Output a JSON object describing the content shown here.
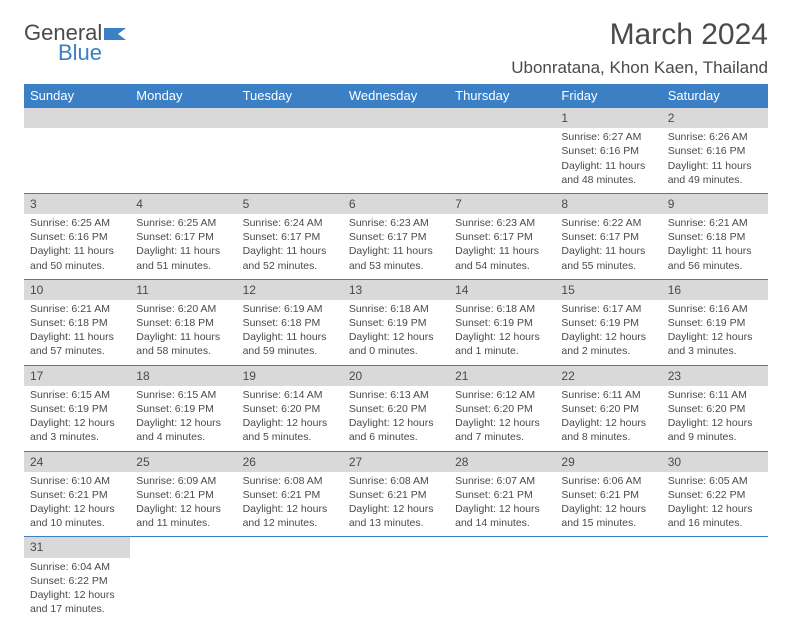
{
  "brand": {
    "part1": "General",
    "part2": "Blue"
  },
  "title": "March 2024",
  "location": "Ubonratana, Khon Kaen, Thailand",
  "colors": {
    "header_bg": "#3b7fc4",
    "header_text": "#ffffff",
    "daynum_bg": "#d9d9d9",
    "border": "#3b7fc4",
    "text": "#4a4a4a"
  },
  "fonts": {
    "title_size": 30,
    "location_size": 17,
    "weekday_size": 13,
    "daynum_size": 12,
    "detail_size": 10.5
  },
  "weekdays": [
    "Sunday",
    "Monday",
    "Tuesday",
    "Wednesday",
    "Thursday",
    "Friday",
    "Saturday"
  ],
  "weeks": [
    [
      null,
      null,
      null,
      null,
      null,
      {
        "n": "1",
        "sr": "Sunrise: 6:27 AM",
        "ss": "Sunset: 6:16 PM",
        "dl1": "Daylight: 11 hours",
        "dl2": "and 48 minutes."
      },
      {
        "n": "2",
        "sr": "Sunrise: 6:26 AM",
        "ss": "Sunset: 6:16 PM",
        "dl1": "Daylight: 11 hours",
        "dl2": "and 49 minutes."
      }
    ],
    [
      {
        "n": "3",
        "sr": "Sunrise: 6:25 AM",
        "ss": "Sunset: 6:16 PM",
        "dl1": "Daylight: 11 hours",
        "dl2": "and 50 minutes."
      },
      {
        "n": "4",
        "sr": "Sunrise: 6:25 AM",
        "ss": "Sunset: 6:17 PM",
        "dl1": "Daylight: 11 hours",
        "dl2": "and 51 minutes."
      },
      {
        "n": "5",
        "sr": "Sunrise: 6:24 AM",
        "ss": "Sunset: 6:17 PM",
        "dl1": "Daylight: 11 hours",
        "dl2": "and 52 minutes."
      },
      {
        "n": "6",
        "sr": "Sunrise: 6:23 AM",
        "ss": "Sunset: 6:17 PM",
        "dl1": "Daylight: 11 hours",
        "dl2": "and 53 minutes."
      },
      {
        "n": "7",
        "sr": "Sunrise: 6:23 AM",
        "ss": "Sunset: 6:17 PM",
        "dl1": "Daylight: 11 hours",
        "dl2": "and 54 minutes."
      },
      {
        "n": "8",
        "sr": "Sunrise: 6:22 AM",
        "ss": "Sunset: 6:17 PM",
        "dl1": "Daylight: 11 hours",
        "dl2": "and 55 minutes."
      },
      {
        "n": "9",
        "sr": "Sunrise: 6:21 AM",
        "ss": "Sunset: 6:18 PM",
        "dl1": "Daylight: 11 hours",
        "dl2": "and 56 minutes."
      }
    ],
    [
      {
        "n": "10",
        "sr": "Sunrise: 6:21 AM",
        "ss": "Sunset: 6:18 PM",
        "dl1": "Daylight: 11 hours",
        "dl2": "and 57 minutes."
      },
      {
        "n": "11",
        "sr": "Sunrise: 6:20 AM",
        "ss": "Sunset: 6:18 PM",
        "dl1": "Daylight: 11 hours",
        "dl2": "and 58 minutes."
      },
      {
        "n": "12",
        "sr": "Sunrise: 6:19 AM",
        "ss": "Sunset: 6:18 PM",
        "dl1": "Daylight: 11 hours",
        "dl2": "and 59 minutes."
      },
      {
        "n": "13",
        "sr": "Sunrise: 6:18 AM",
        "ss": "Sunset: 6:19 PM",
        "dl1": "Daylight: 12 hours",
        "dl2": "and 0 minutes."
      },
      {
        "n": "14",
        "sr": "Sunrise: 6:18 AM",
        "ss": "Sunset: 6:19 PM",
        "dl1": "Daylight: 12 hours",
        "dl2": "and 1 minute."
      },
      {
        "n": "15",
        "sr": "Sunrise: 6:17 AM",
        "ss": "Sunset: 6:19 PM",
        "dl1": "Daylight: 12 hours",
        "dl2": "and 2 minutes."
      },
      {
        "n": "16",
        "sr": "Sunrise: 6:16 AM",
        "ss": "Sunset: 6:19 PM",
        "dl1": "Daylight: 12 hours",
        "dl2": "and 3 minutes."
      }
    ],
    [
      {
        "n": "17",
        "sr": "Sunrise: 6:15 AM",
        "ss": "Sunset: 6:19 PM",
        "dl1": "Daylight: 12 hours",
        "dl2": "and 3 minutes."
      },
      {
        "n": "18",
        "sr": "Sunrise: 6:15 AM",
        "ss": "Sunset: 6:19 PM",
        "dl1": "Daylight: 12 hours",
        "dl2": "and 4 minutes."
      },
      {
        "n": "19",
        "sr": "Sunrise: 6:14 AM",
        "ss": "Sunset: 6:20 PM",
        "dl1": "Daylight: 12 hours",
        "dl2": "and 5 minutes."
      },
      {
        "n": "20",
        "sr": "Sunrise: 6:13 AM",
        "ss": "Sunset: 6:20 PM",
        "dl1": "Daylight: 12 hours",
        "dl2": "and 6 minutes."
      },
      {
        "n": "21",
        "sr": "Sunrise: 6:12 AM",
        "ss": "Sunset: 6:20 PM",
        "dl1": "Daylight: 12 hours",
        "dl2": "and 7 minutes."
      },
      {
        "n": "22",
        "sr": "Sunrise: 6:11 AM",
        "ss": "Sunset: 6:20 PM",
        "dl1": "Daylight: 12 hours",
        "dl2": "and 8 minutes."
      },
      {
        "n": "23",
        "sr": "Sunrise: 6:11 AM",
        "ss": "Sunset: 6:20 PM",
        "dl1": "Daylight: 12 hours",
        "dl2": "and 9 minutes."
      }
    ],
    [
      {
        "n": "24",
        "sr": "Sunrise: 6:10 AM",
        "ss": "Sunset: 6:21 PM",
        "dl1": "Daylight: 12 hours",
        "dl2": "and 10 minutes."
      },
      {
        "n": "25",
        "sr": "Sunrise: 6:09 AM",
        "ss": "Sunset: 6:21 PM",
        "dl1": "Daylight: 12 hours",
        "dl2": "and 11 minutes."
      },
      {
        "n": "26",
        "sr": "Sunrise: 6:08 AM",
        "ss": "Sunset: 6:21 PM",
        "dl1": "Daylight: 12 hours",
        "dl2": "and 12 minutes."
      },
      {
        "n": "27",
        "sr": "Sunrise: 6:08 AM",
        "ss": "Sunset: 6:21 PM",
        "dl1": "Daylight: 12 hours",
        "dl2": "and 13 minutes."
      },
      {
        "n": "28",
        "sr": "Sunrise: 6:07 AM",
        "ss": "Sunset: 6:21 PM",
        "dl1": "Daylight: 12 hours",
        "dl2": "and 14 minutes."
      },
      {
        "n": "29",
        "sr": "Sunrise: 6:06 AM",
        "ss": "Sunset: 6:21 PM",
        "dl1": "Daylight: 12 hours",
        "dl2": "and 15 minutes."
      },
      {
        "n": "30",
        "sr": "Sunrise: 6:05 AM",
        "ss": "Sunset: 6:22 PM",
        "dl1": "Daylight: 12 hours",
        "dl2": "and 16 minutes."
      }
    ],
    [
      {
        "n": "31",
        "sr": "Sunrise: 6:04 AM",
        "ss": "Sunset: 6:22 PM",
        "dl1": "Daylight: 12 hours",
        "dl2": "and 17 minutes."
      },
      null,
      null,
      null,
      null,
      null,
      null
    ]
  ]
}
